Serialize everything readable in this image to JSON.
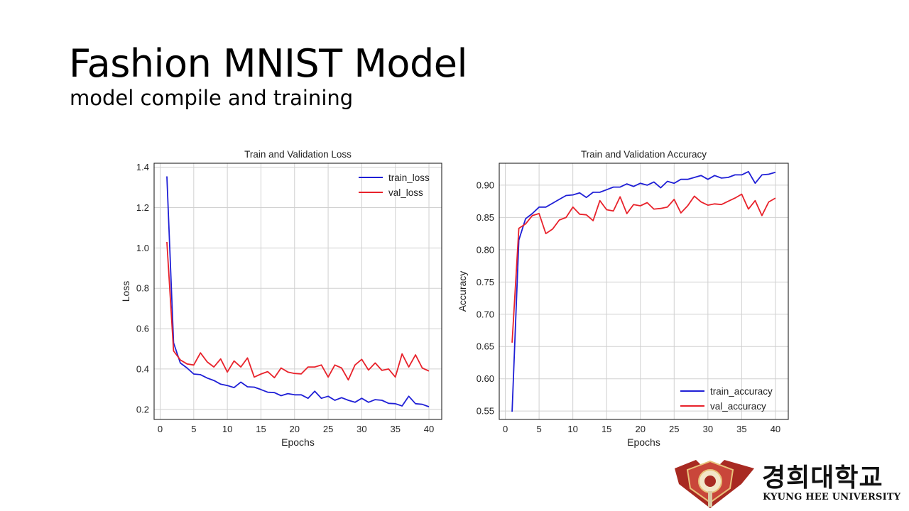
{
  "slide": {
    "title": "Fashion MNIST Model",
    "subtitle": "model compile and training"
  },
  "logo": {
    "korean_name": "경희대학교",
    "english_name": "KYUNG HEE UNIVERSITY",
    "emblem_color": "#a82a22"
  },
  "chart_data": [
    {
      "type": "line",
      "title": "Train and Validation Loss",
      "xlabel": "Epochs",
      "ylabel": "Loss",
      "xlim": [
        -0.9,
        41.9
      ],
      "ylim": [
        0.15,
        1.42
      ],
      "xticks": [
        0,
        5,
        10,
        15,
        20,
        25,
        30,
        35,
        40
      ],
      "yticks": [
        0.2,
        0.4,
        0.6,
        0.8,
        1.0,
        1.2,
        1.4
      ],
      "ytick_labels": [
        "0.2",
        "0.4",
        "0.6",
        "0.8",
        "1.0",
        "1.2",
        "1.4"
      ],
      "grid": true,
      "legend_position": "top-right",
      "x": [
        1,
        2,
        3,
        4,
        5,
        6,
        7,
        8,
        9,
        10,
        11,
        12,
        13,
        14,
        15,
        16,
        17,
        18,
        19,
        20,
        21,
        22,
        23,
        24,
        25,
        26,
        27,
        28,
        29,
        30,
        31,
        32,
        33,
        34,
        35,
        36,
        37,
        38,
        39,
        40
      ],
      "series": [
        {
          "name": "train_loss",
          "color": "#1f1fd6",
          "values": [
            1.355,
            0.53,
            0.43,
            0.405,
            0.375,
            0.372,
            0.355,
            0.343,
            0.325,
            0.318,
            0.308,
            0.335,
            0.312,
            0.31,
            0.298,
            0.285,
            0.283,
            0.268,
            0.278,
            0.272,
            0.272,
            0.255,
            0.29,
            0.255,
            0.265,
            0.245,
            0.258,
            0.245,
            0.235,
            0.255,
            0.235,
            0.248,
            0.245,
            0.23,
            0.228,
            0.217,
            0.265,
            0.228,
            0.225,
            0.213
          ]
        },
        {
          "name": "val_loss",
          "color": "#e8222b",
          "values": [
            1.03,
            0.49,
            0.445,
            0.425,
            0.42,
            0.48,
            0.435,
            0.41,
            0.45,
            0.385,
            0.44,
            0.41,
            0.455,
            0.36,
            0.375,
            0.387,
            0.357,
            0.405,
            0.385,
            0.378,
            0.376,
            0.41,
            0.41,
            0.42,
            0.36,
            0.42,
            0.405,
            0.346,
            0.42,
            0.448,
            0.395,
            0.43,
            0.393,
            0.4,
            0.36,
            0.475,
            0.41,
            0.47,
            0.405,
            0.39
          ]
        }
      ]
    },
    {
      "type": "line",
      "title": "Train and Validation Accuracy",
      "xlabel": "Epochs",
      "ylabel": "Accuracy",
      "xlim": [
        -0.9,
        41.9
      ],
      "ylim": [
        0.537,
        0.934
      ],
      "xticks": [
        0,
        5,
        10,
        15,
        20,
        25,
        30,
        35,
        40
      ],
      "yticks": [
        0.55,
        0.6,
        0.65,
        0.7,
        0.75,
        0.8,
        0.85,
        0.9
      ],
      "ytick_labels": [
        "0.55",
        "0.60",
        "0.65",
        "0.70",
        "0.75",
        "0.80",
        "0.85",
        "0.90"
      ],
      "grid": true,
      "legend_position": "bottom-right",
      "x": [
        1,
        2,
        3,
        4,
        5,
        6,
        7,
        8,
        9,
        10,
        11,
        12,
        13,
        14,
        15,
        16,
        17,
        18,
        19,
        20,
        21,
        22,
        23,
        24,
        25,
        26,
        27,
        28,
        29,
        30,
        31,
        32,
        33,
        34,
        35,
        36,
        37,
        38,
        39,
        40
      ],
      "series": [
        {
          "name": "train_accuracy",
          "color": "#1f1fd6",
          "values": [
            0.549,
            0.815,
            0.848,
            0.856,
            0.866,
            0.866,
            0.872,
            0.878,
            0.884,
            0.885,
            0.888,
            0.881,
            0.889,
            0.889,
            0.893,
            0.897,
            0.897,
            0.902,
            0.898,
            0.903,
            0.9,
            0.905,
            0.896,
            0.906,
            0.903,
            0.909,
            0.909,
            0.912,
            0.915,
            0.909,
            0.915,
            0.911,
            0.912,
            0.916,
            0.916,
            0.921,
            0.903,
            0.916,
            0.917,
            0.92
          ]
        },
        {
          "name": "val_accuracy",
          "color": "#e8222b",
          "values": [
            0.656,
            0.833,
            0.84,
            0.853,
            0.856,
            0.825,
            0.832,
            0.846,
            0.85,
            0.866,
            0.855,
            0.854,
            0.845,
            0.876,
            0.862,
            0.86,
            0.882,
            0.856,
            0.87,
            0.868,
            0.873,
            0.863,
            0.864,
            0.866,
            0.878,
            0.857,
            0.868,
            0.883,
            0.874,
            0.869,
            0.871,
            0.87,
            0.875,
            0.88,
            0.886,
            0.863,
            0.876,
            0.853,
            0.874,
            0.88
          ]
        }
      ]
    }
  ]
}
